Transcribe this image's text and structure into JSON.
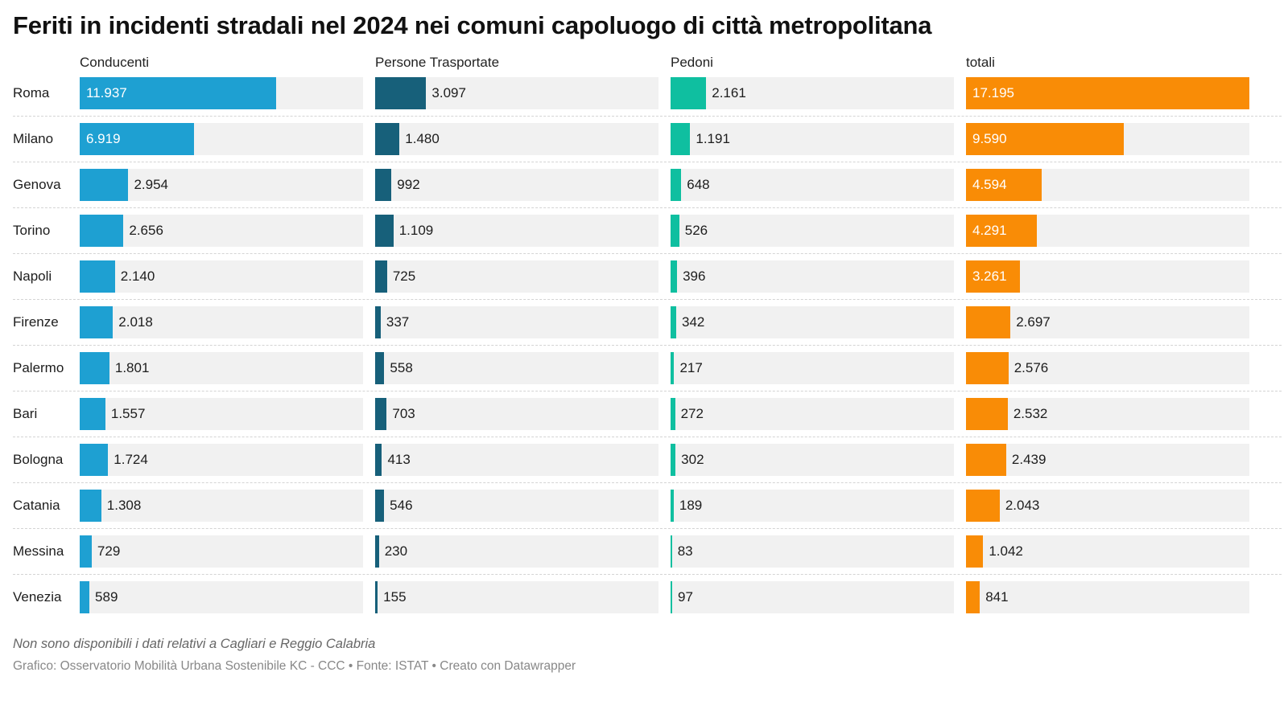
{
  "title": "Feriti in incidenti stradali nel 2024 nei comuni capoluogo di città metropolitana",
  "note": "Non sono disponibili i dati relativi a Cagliari e Reggio Calabria",
  "credit": "Grafico: Osservatorio Mobilità Urbana Sostenibile KC - CCC • Fonte: ISTAT • Creato con Datawrapper",
  "chart_data": {
    "type": "bar",
    "orientation": "horizontal",
    "layout": "small-multiples",
    "categories": [
      "Roma",
      "Milano",
      "Genova",
      "Torino",
      "Napoli",
      "Firenze",
      "Palermo",
      "Bari",
      "Bologna",
      "Catania",
      "Messina",
      "Venezia"
    ],
    "xlim": [
      0,
      17195
    ],
    "series": [
      {
        "name": "Conducenti",
        "color": "#1ea0d2",
        "values": [
          11937,
          6919,
          2954,
          2656,
          2140,
          2018,
          1801,
          1557,
          1724,
          1308,
          729,
          589
        ],
        "labels": [
          "11.937",
          "6.919",
          "2.954",
          "2.656",
          "2.140",
          "2.018",
          "1.801",
          "1.557",
          "1.724",
          "1.308",
          "729",
          "589"
        ]
      },
      {
        "name": "Persone Trasportate",
        "color": "#17607a",
        "values": [
          3097,
          1480,
          992,
          1109,
          725,
          337,
          558,
          703,
          413,
          546,
          230,
          155
        ],
        "labels": [
          "3.097",
          "1.480",
          "992",
          "1.109",
          "725",
          "337",
          "558",
          "703",
          "413",
          "546",
          "230",
          "155"
        ]
      },
      {
        "name": "Pedoni",
        "color": "#0fbfa0",
        "values": [
          2161,
          1191,
          648,
          526,
          396,
          342,
          217,
          272,
          302,
          189,
          83,
          97
        ],
        "labels": [
          "2.161",
          "1.191",
          "648",
          "526",
          "396",
          "342",
          "217",
          "272",
          "302",
          "189",
          "83",
          "97"
        ]
      },
      {
        "name": "totali",
        "color": "#f98c06",
        "values": [
          17195,
          9590,
          4594,
          4291,
          3261,
          2697,
          2576,
          2532,
          2439,
          2043,
          1042,
          841
        ],
        "labels": [
          "17.195",
          "9.590",
          "4.594",
          "4.291",
          "3.261",
          "2.697",
          "2.576",
          "2.532",
          "2.439",
          "2.043",
          "1.042",
          "841"
        ]
      }
    ]
  }
}
